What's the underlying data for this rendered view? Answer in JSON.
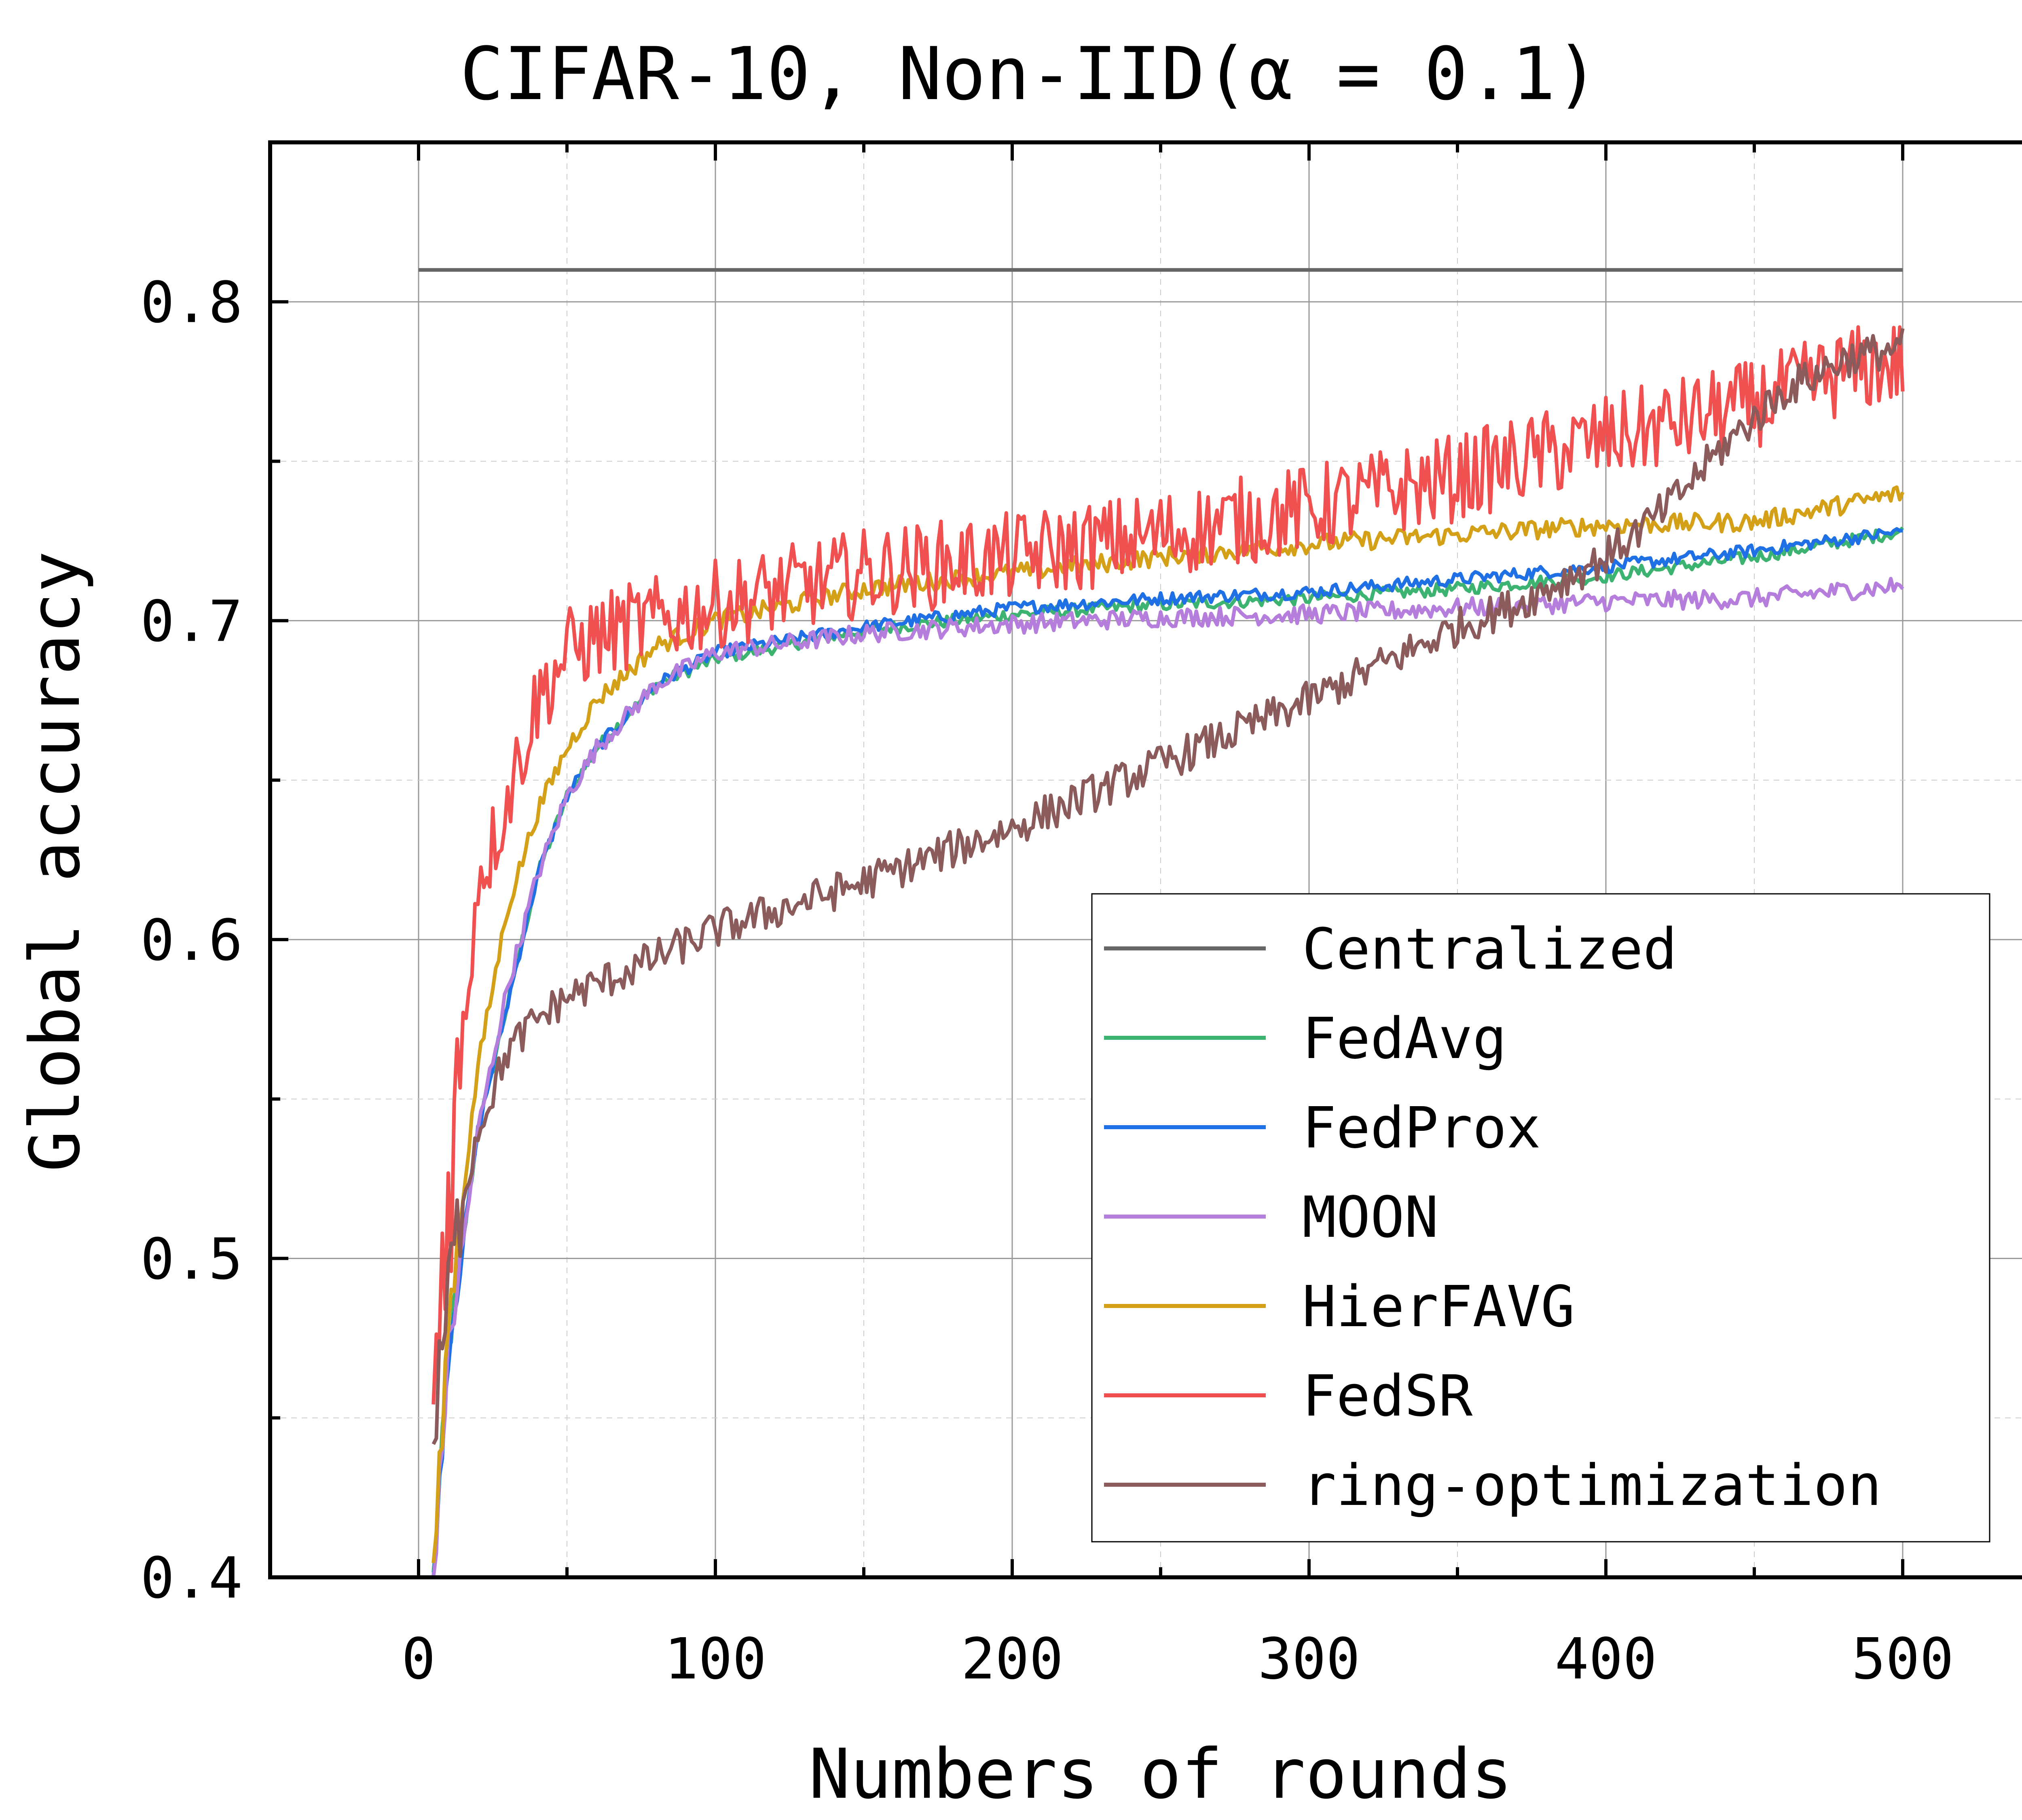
{
  "chart_data": {
    "type": "line",
    "title": "CIFAR-10, Non-IID(α = 0.1)",
    "xlabel": "Numbers of rounds",
    "ylabel": "Global accuracy",
    "xlim": [
      -50,
      550
    ],
    "ylim": [
      0.4,
      0.85
    ],
    "xticks": [
      "0",
      "100",
      "200",
      "300",
      "400",
      "500"
    ],
    "yticks": [
      "0.4",
      "0.5",
      "0.6",
      "0.7",
      "0.8"
    ],
    "grid": true,
    "legend_position": "bottom-right",
    "series": [
      {
        "name": "Centralized",
        "color": "#666666",
        "noise": 0,
        "x": [
          0,
          500
        ],
        "y": [
          0.81,
          0.81
        ]
      },
      {
        "name": "FedAvg",
        "color": "#3cb371",
        "noise": 0.002,
        "x": [
          5,
          10,
          20,
          30,
          40,
          50,
          60,
          80,
          100,
          150,
          200,
          250,
          300,
          350,
          400,
          450,
          500
        ],
        "y": [
          0.4,
          0.47,
          0.54,
          0.58,
          0.62,
          0.645,
          0.66,
          0.68,
          0.688,
          0.697,
          0.702,
          0.705,
          0.707,
          0.71,
          0.714,
          0.72,
          0.728
        ]
      },
      {
        "name": "FedProx",
        "color": "#1f6fe5",
        "noise": 0.002,
        "x": [
          5,
          10,
          20,
          30,
          40,
          50,
          60,
          80,
          100,
          150,
          200,
          250,
          300,
          350,
          400,
          450,
          500
        ],
        "y": [
          0.4,
          0.47,
          0.54,
          0.58,
          0.62,
          0.645,
          0.66,
          0.68,
          0.69,
          0.698,
          0.704,
          0.707,
          0.709,
          0.713,
          0.717,
          0.722,
          0.728
        ]
      },
      {
        "name": "MOON",
        "color": "#b57edc",
        "noise": 0.003,
        "x": [
          5,
          10,
          20,
          30,
          40,
          50,
          60,
          80,
          100,
          150,
          200,
          250,
          300,
          350,
          400,
          450,
          500
        ],
        "y": [
          0.4,
          0.47,
          0.54,
          0.585,
          0.62,
          0.645,
          0.66,
          0.68,
          0.69,
          0.696,
          0.699,
          0.701,
          0.702,
          0.704,
          0.706,
          0.707,
          0.711
        ]
      },
      {
        "name": "HierFAVG",
        "color": "#d4a017",
        "noise": 0.003,
        "x": [
          5,
          10,
          20,
          30,
          40,
          50,
          60,
          80,
          100,
          150,
          200,
          250,
          300,
          350,
          400,
          450,
          500
        ],
        "y": [
          0.4,
          0.48,
          0.56,
          0.61,
          0.64,
          0.66,
          0.675,
          0.692,
          0.7,
          0.71,
          0.715,
          0.72,
          0.724,
          0.727,
          0.73,
          0.731,
          0.74
        ]
      },
      {
        "name": "FedSR",
        "color": "#f05050",
        "noise": 0.014,
        "x": [
          5,
          8,
          12,
          15,
          20,
          25,
          30,
          40,
          50,
          60,
          70,
          80,
          100,
          150,
          200,
          250,
          300,
          350,
          400,
          450,
          480,
          500
        ],
        "y": [
          0.45,
          0.5,
          0.54,
          0.57,
          0.62,
          0.63,
          0.645,
          0.675,
          0.69,
          0.695,
          0.698,
          0.7,
          0.705,
          0.715,
          0.72,
          0.727,
          0.735,
          0.745,
          0.757,
          0.768,
          0.778,
          0.781
        ]
      },
      {
        "name": "ring-optimization",
        "color": "#8b5a5a",
        "noise": 0.006,
        "x": [
          5,
          10,
          15,
          20,
          30,
          40,
          50,
          70,
          100,
          150,
          200,
          250,
          300,
          350,
          370,
          400,
          420,
          440,
          460,
          480,
          500
        ],
        "y": [
          0.44,
          0.49,
          0.52,
          0.54,
          0.565,
          0.575,
          0.582,
          0.59,
          0.603,
          0.618,
          0.635,
          0.655,
          0.675,
          0.698,
          0.705,
          0.72,
          0.735,
          0.755,
          0.772,
          0.782,
          0.786
        ]
      }
    ]
  }
}
